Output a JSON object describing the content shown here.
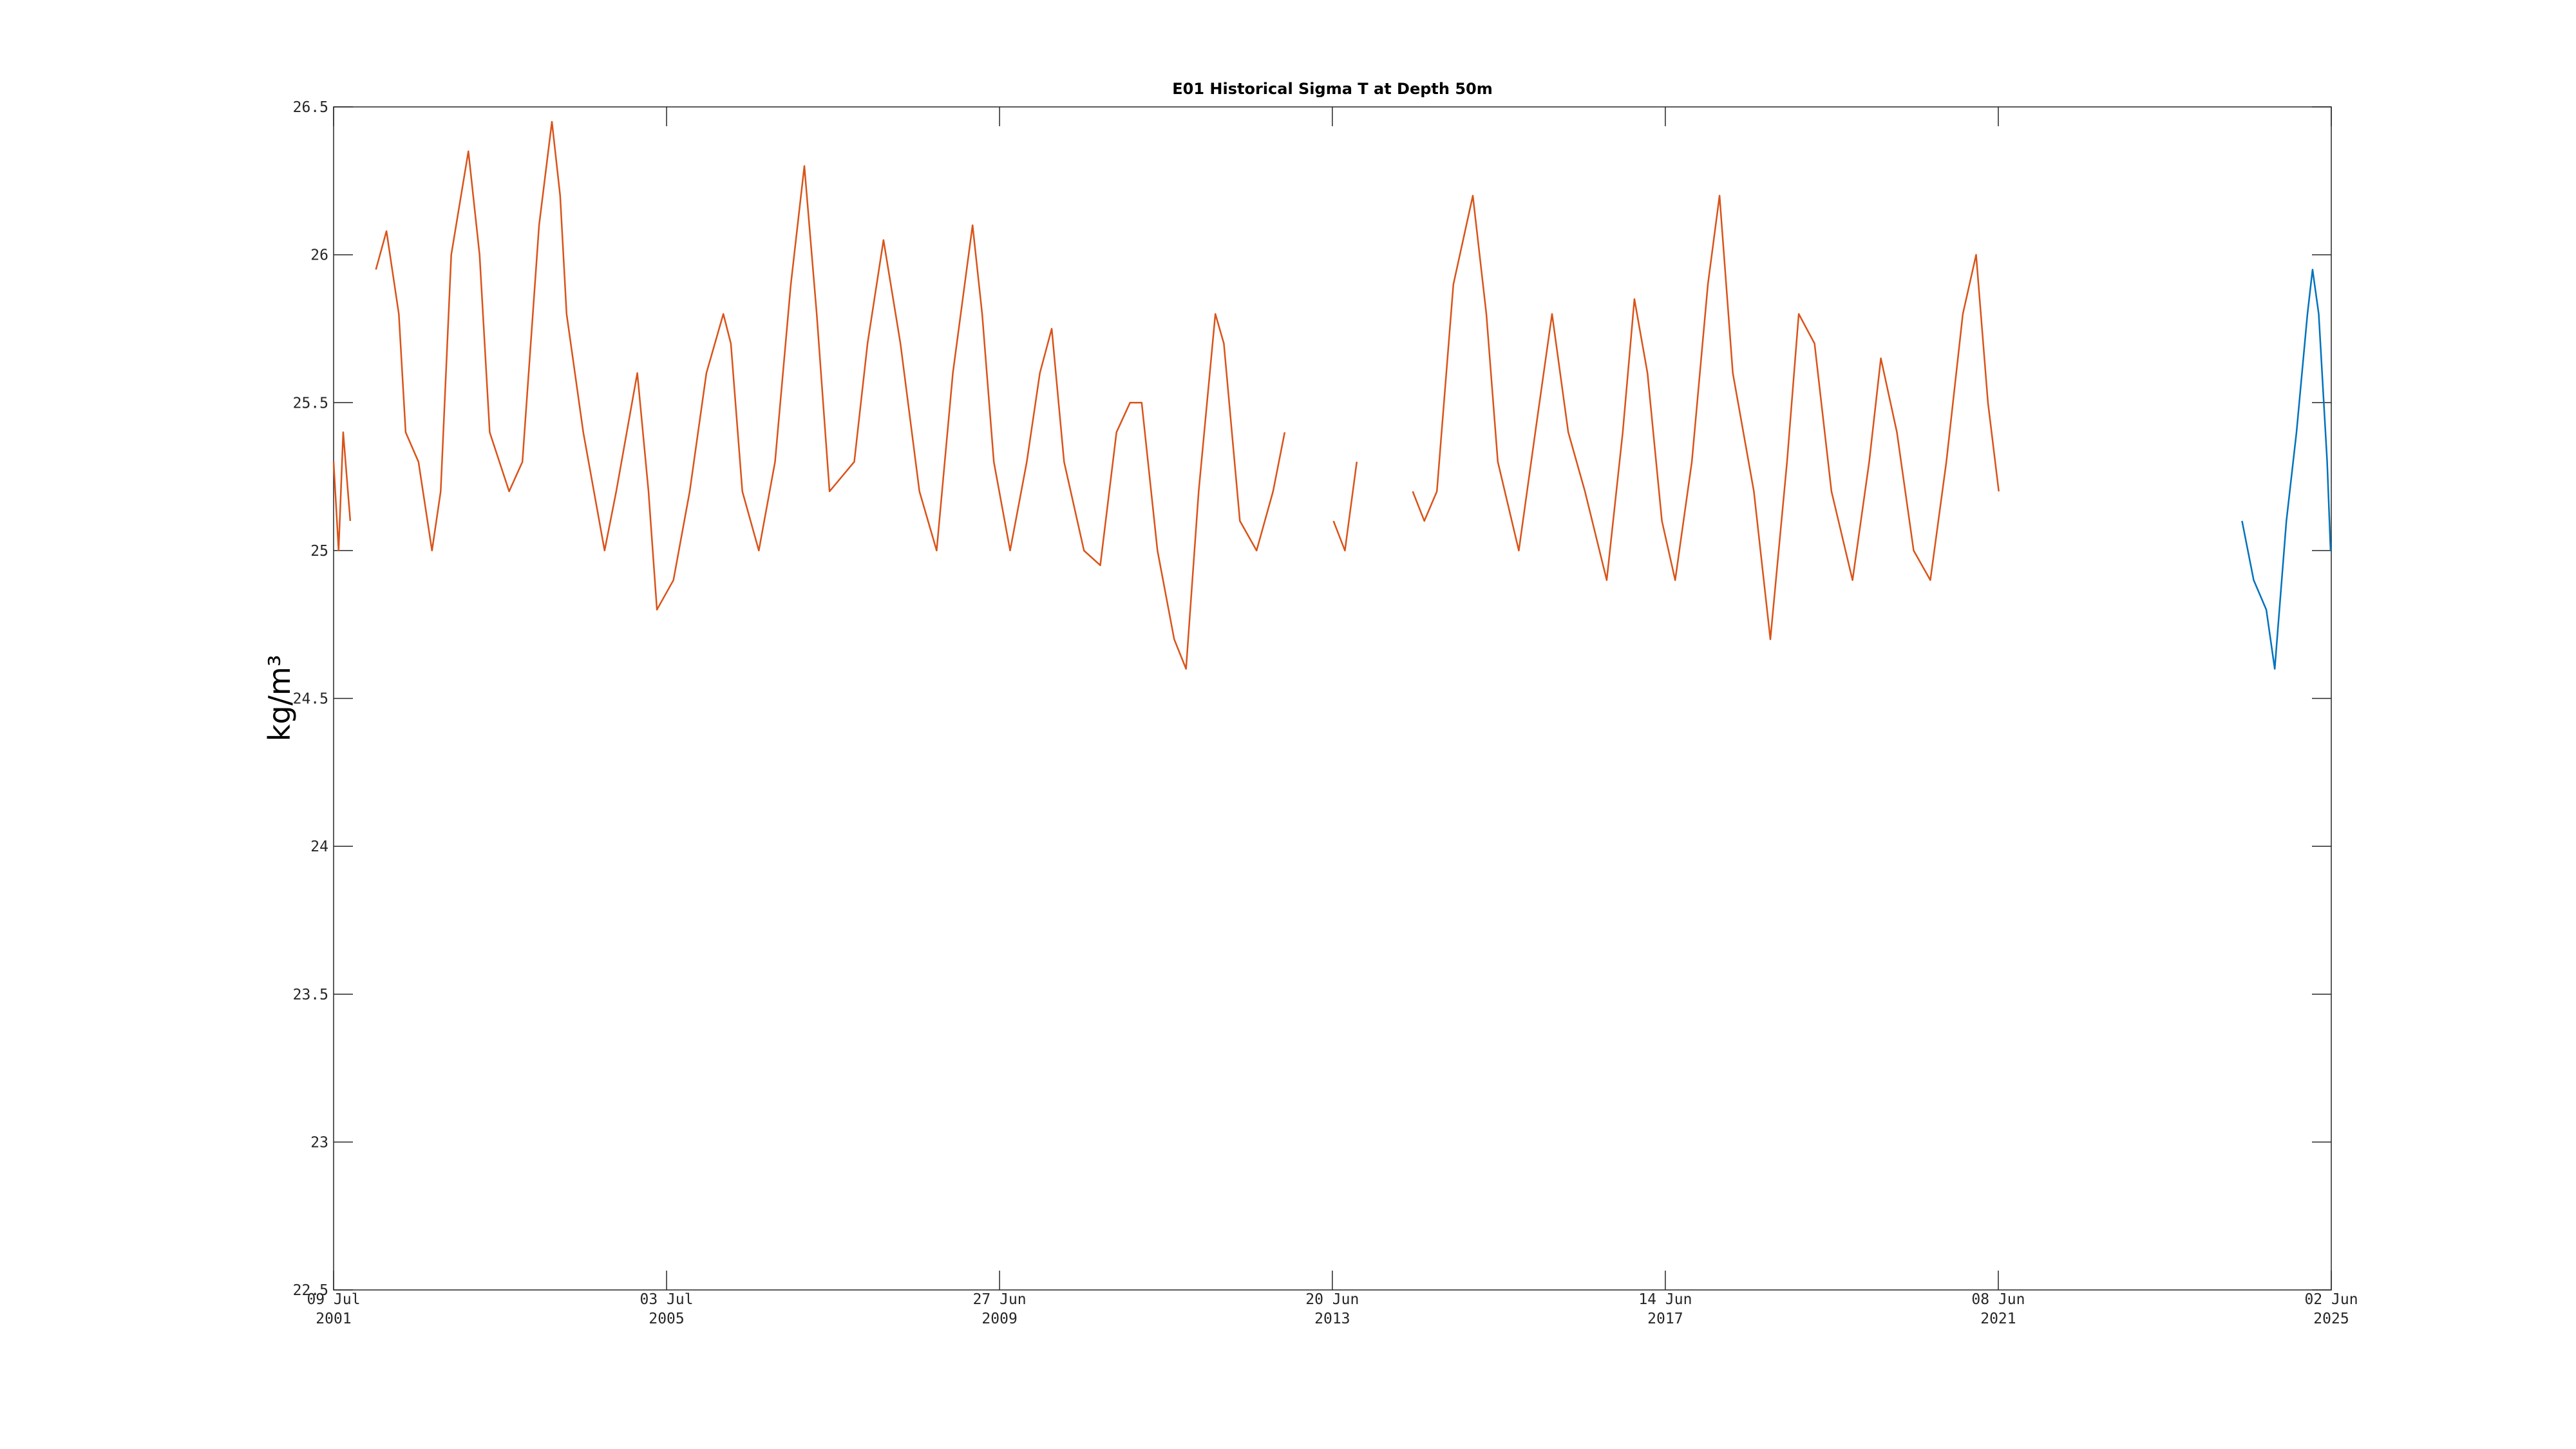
{
  "chart_data": {
    "type": "line",
    "title": "E01 Historical Sigma T at Depth 50m",
    "y_label": "kg/m³",
    "grid": false,
    "xlim": [
      "2001-07-09",
      "2025-06-02"
    ],
    "xticks": [
      {
        "value": "2001-07-09",
        "label": [
          "09 Jul",
          "2001"
        ]
      },
      {
        "value": "2005-07-03",
        "label": [
          "03 Jul",
          "2005"
        ]
      },
      {
        "value": "2009-06-27",
        "label": [
          "27 Jun",
          "2009"
        ]
      },
      {
        "value": "2013-06-20",
        "label": [
          "20 Jun",
          "2013"
        ]
      },
      {
        "value": "2017-06-14",
        "label": [
          "14 Jun",
          "2017"
        ]
      },
      {
        "value": "2021-06-08",
        "label": [
          "08 Jun",
          "2021"
        ]
      },
      {
        "value": "2025-06-02",
        "label": [
          "02 Jun",
          "2025"
        ]
      }
    ],
    "ylim": [
      22.5,
      26.5
    ],
    "yticks": [
      22.5,
      23,
      23.5,
      24,
      24.5,
      25,
      25.5,
      26,
      26.5
    ],
    "series": [
      {
        "color": "#d95319",
        "x": [
          "2001-07-09",
          "2001-07-31",
          "2001-08-20",
          "2001-09-20",
          "2001-11-15",
          "2002-01-10",
          "2002-02-25",
          "2002-04-20",
          "2002-05-20",
          "2002-07-15",
          "2002-09-12",
          "2002-10-20",
          "2002-12-05",
          "2003-02-18",
          "2003-04-08",
          "2003-05-22",
          "2003-08-15",
          "2003-10-12",
          "2003-12-24",
          "2004-02-18",
          "2004-03-25",
          "2004-04-22",
          "2004-07-04",
          "2004-10-05",
          "2004-11-25",
          "2005-02-25",
          "2005-04-15",
          "2005-05-22",
          "2005-08-02",
          "2005-10-12",
          "2005-12-24",
          "2006-03-08",
          "2006-04-10",
          "2006-05-30",
          "2006-08-10",
          "2006-10-20",
          "2006-12-28",
          "2007-02-25",
          "2007-04-20",
          "2007-06-15",
          "2007-10-01",
          "2007-11-28",
          "2008-02-06",
          "2008-04-20",
          "2008-07-12",
          "2008-09-25",
          "2008-12-05",
          "2009-03-01",
          "2009-04-12",
          "2009-06-02",
          "2009-08-12",
          "2009-10-24",
          "2009-12-20",
          "2010-02-10",
          "2010-04-05",
          "2010-07-01",
          "2010-09-10",
          "2010-11-20",
          "2011-01-18",
          "2011-03-10",
          "2011-05-18",
          "2011-07-30",
          "2011-09-20",
          "2011-11-14",
          "2012-01-26",
          "2012-03-03",
          "2012-05-12",
          "2012-07-24",
          "2012-10-04",
          "2012-11-24",
          "2013-03-01",
          "2013-06-25",
          "2013-08-14",
          "2013-10-05",
          "2014-01-01",
          "2014-06-06",
          "2014-07-27",
          "2014-09-20",
          "2014-12-01",
          "2015-02-24",
          "2015-04-24",
          "2015-06-13",
          "2015-09-13",
          "2015-11-24",
          "2016-02-05",
          "2016-04-16",
          "2016-06-28",
          "2016-10-01",
          "2016-12-10",
          "2017-01-30",
          "2017-03-28",
          "2017-05-30",
          "2017-07-27",
          "2017-10-08",
          "2017-12-17",
          "2018-02-06",
          "2018-04-05",
          "2018-07-06",
          "2018-09-16",
          "2018-11-28",
          "2019-01-18",
          "2019-03-28",
          "2019-06-10",
          "2019-09-10",
          "2019-11-22",
          "2020-01-12",
          "2020-03-22",
          "2020-06-03",
          "2020-08-15",
          "2020-10-24",
          "2021-01-04",
          "2021-03-03",
          "2021-04-24",
          "2021-06-10"
        ],
        "values": [
          25.3,
          25.0,
          25.4,
          25.1,
          null,
          25.95,
          26.08,
          25.8,
          25.4,
          25.3,
          25.0,
          25.2,
          26.0,
          26.35,
          26.0,
          25.4,
          25.2,
          25.3,
          26.1,
          26.45,
          26.2,
          25.8,
          25.4,
          25.0,
          25.2,
          25.6,
          25.2,
          24.8,
          24.9,
          25.2,
          25.6,
          25.8,
          25.7,
          25.2,
          25.0,
          25.3,
          25.9,
          26.3,
          25.8,
          25.2,
          25.3,
          25.7,
          26.05,
          25.7,
          25.2,
          25.0,
          25.6,
          26.1,
          25.8,
          25.3,
          25.0,
          25.3,
          25.6,
          25.75,
          25.3,
          25.0,
          24.95,
          25.4,
          25.5,
          25.5,
          25.0,
          24.7,
          24.6,
          25.2,
          25.8,
          25.7,
          25.1,
          25.0,
          25.2,
          25.4,
          null,
          25.1,
          25.0,
          25.3,
          null,
          25.2,
          25.1,
          25.2,
          25.9,
          26.2,
          25.8,
          25.3,
          25.0,
          25.4,
          25.8,
          25.4,
          25.2,
          24.9,
          25.4,
          25.85,
          25.6,
          25.1,
          24.9,
          25.3,
          25.9,
          26.2,
          25.6,
          25.2,
          24.7,
          25.3,
          25.8,
          25.7,
          25.2,
          24.9,
          25.3,
          25.65,
          25.4,
          25.0,
          24.9,
          25.3,
          25.8,
          26.0,
          25.5,
          25.2
        ]
      },
      {
        "color": "#0072bd",
        "x": [
          "2024-05-08",
          "2024-06-28",
          "2024-08-22",
          "2024-09-28",
          "2024-11-18",
          "2025-01-01",
          "2025-02-18",
          "2025-03-12",
          "2025-04-08",
          "2025-05-15",
          "2025-05-30"
        ],
        "values": [
          25.1,
          24.9,
          24.8,
          24.6,
          25.1,
          25.4,
          25.8,
          25.95,
          25.8,
          25.3,
          25.0
        ]
      }
    ]
  }
}
